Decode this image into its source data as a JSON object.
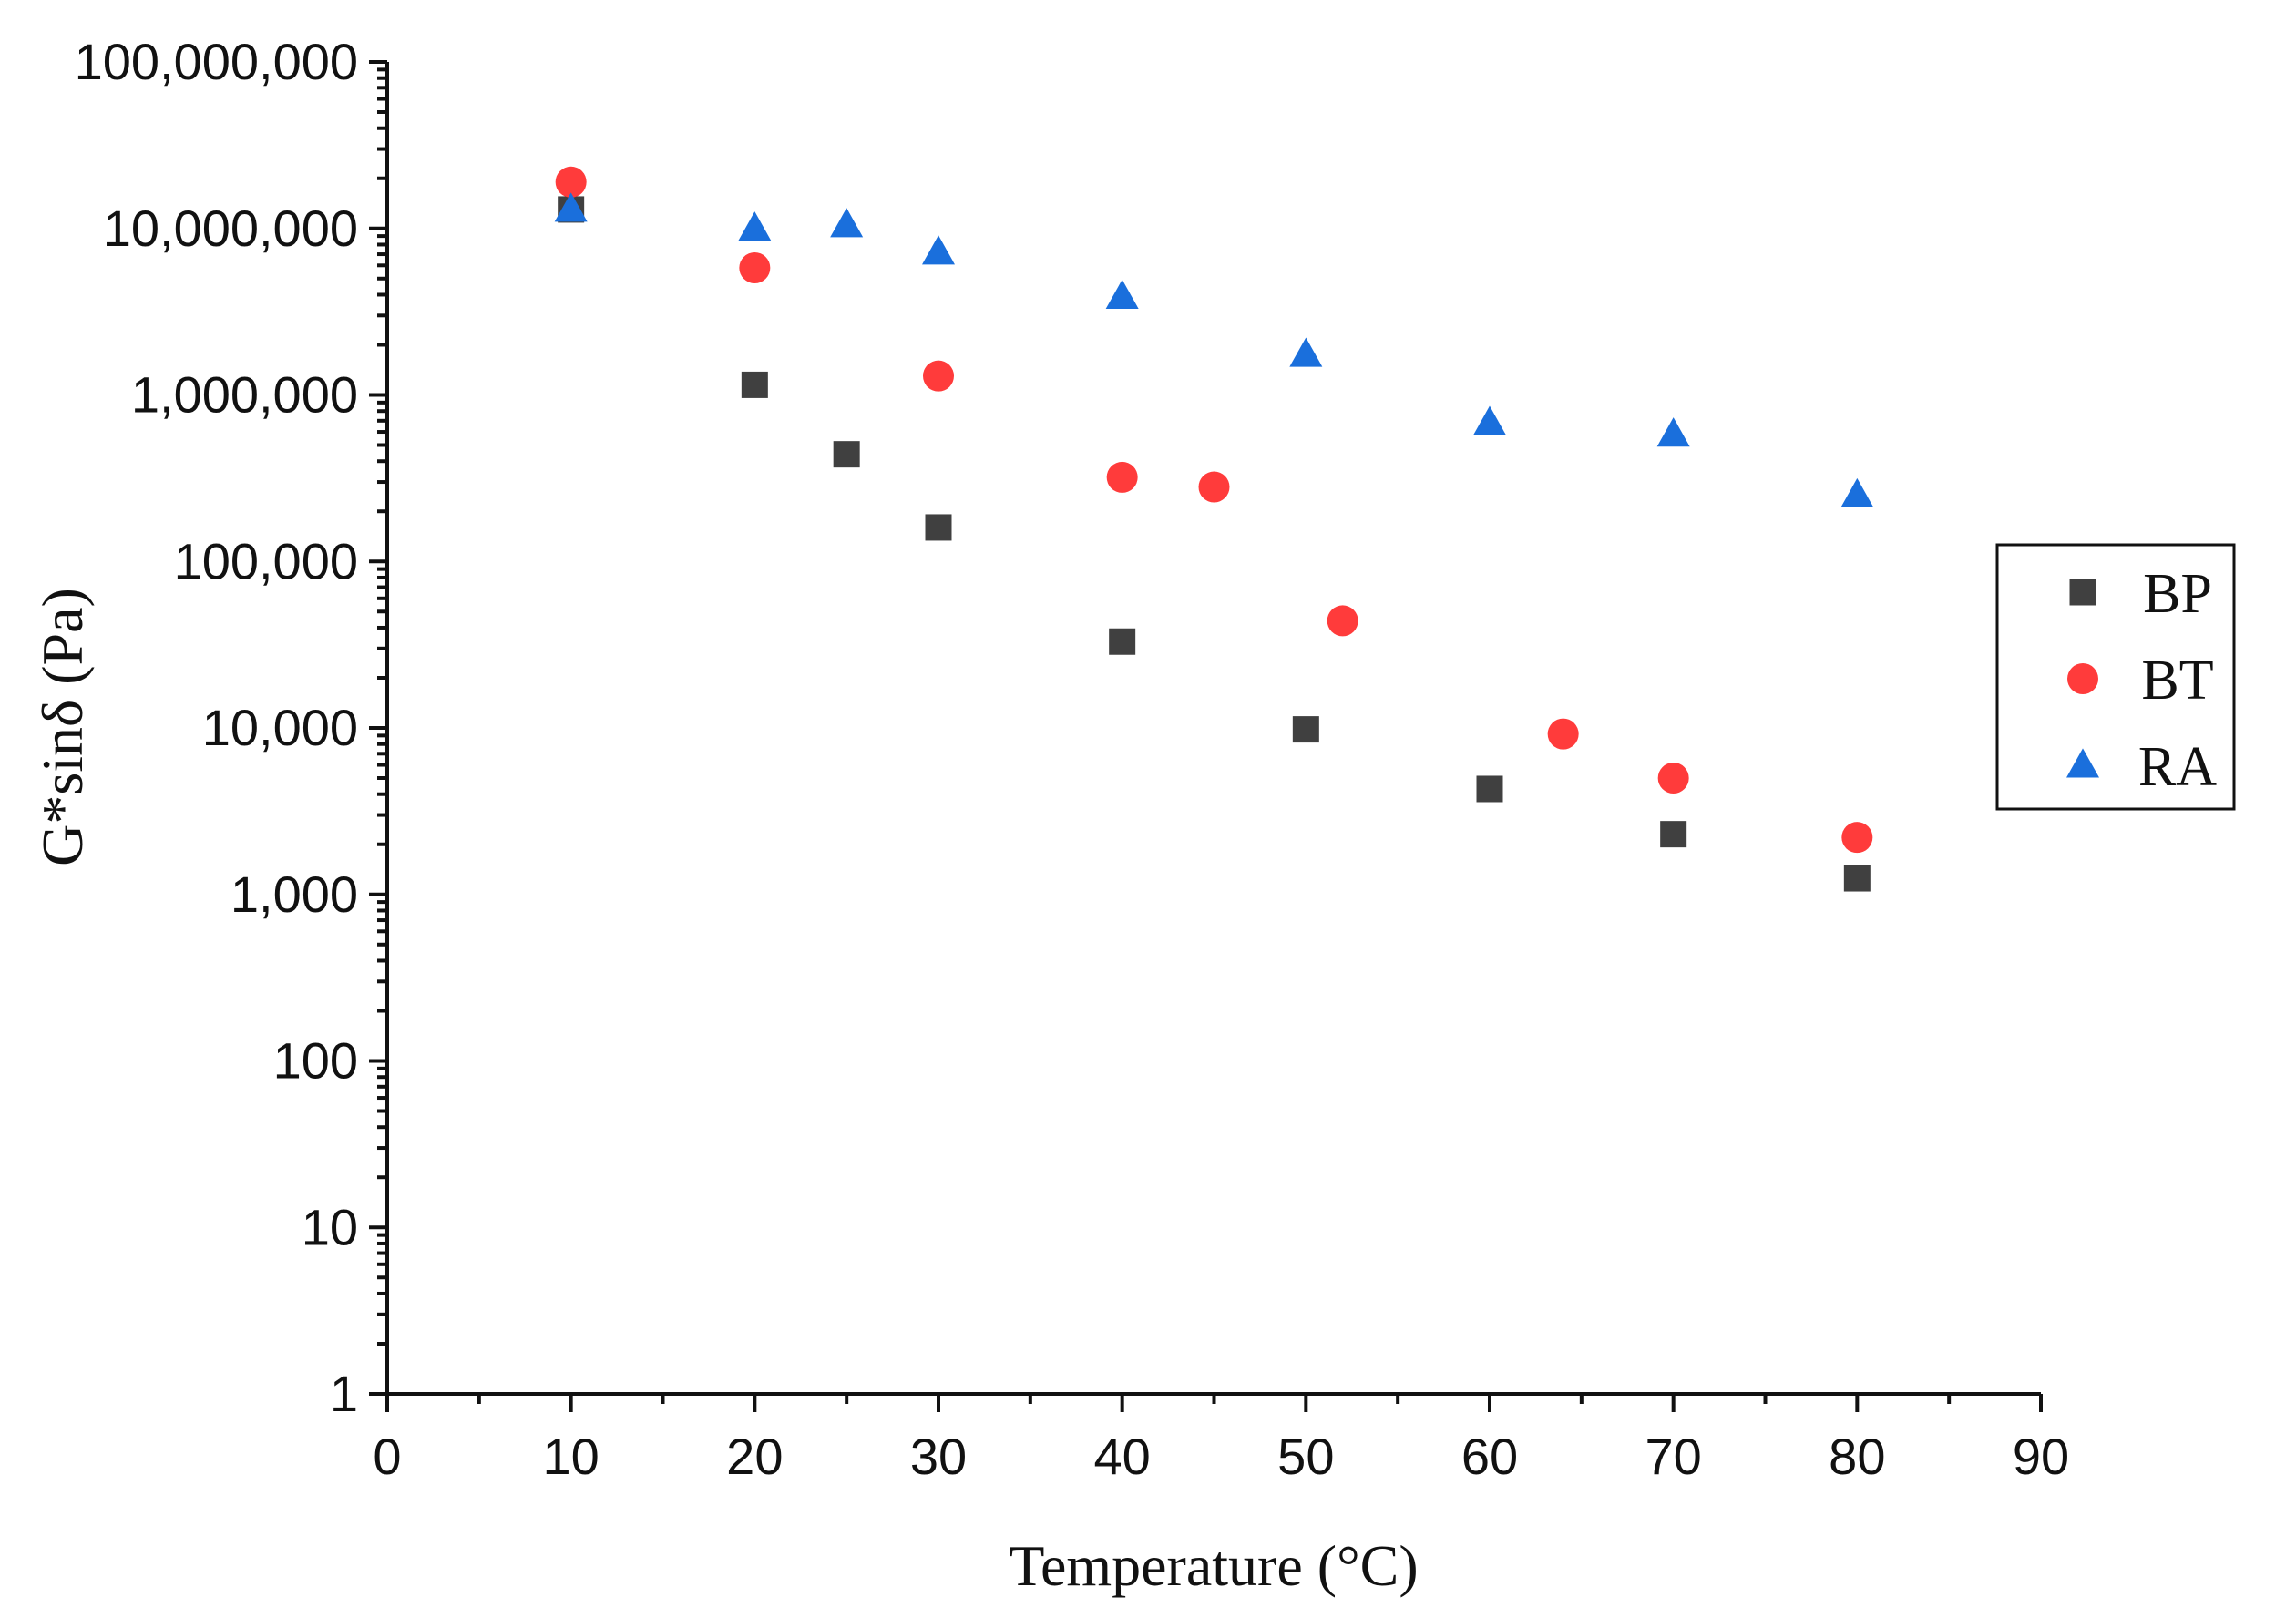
{
  "chart_data": {
    "type": "scatter",
    "title": "",
    "xlabel": "Temperature (°C)",
    "ylabel": "G*sinδ (Pa)",
    "xlim": [
      0,
      90
    ],
    "ylim": [
      1,
      100000000
    ],
    "yscale": "log",
    "grid": false,
    "legend_position": "right",
    "x_ticks": [
      0,
      10,
      20,
      30,
      40,
      50,
      60,
      70,
      80,
      90
    ],
    "x_tick_labels": [
      "0",
      "10",
      "20",
      "30",
      "40",
      "50",
      "60",
      "70",
      "80",
      "90"
    ],
    "y_ticks": [
      1,
      10,
      100,
      1000,
      10000,
      100000,
      1000000,
      10000000,
      100000000
    ],
    "y_tick_labels": [
      "1",
      "10",
      "100",
      "1,000",
      "10,000",
      "100,000",
      "1,000,000",
      "10,000,000",
      "100,000,000"
    ],
    "series": [
      {
        "name": "BP",
        "marker": "square",
        "color": "#404040",
        "x": [
          10,
          20,
          25,
          30,
          40,
          50,
          60,
          70,
          80
        ],
        "y": [
          13000000,
          1150000,
          440000,
          160000,
          33000,
          9800,
          4300,
          2300,
          1250
        ]
      },
      {
        "name": "BT",
        "marker": "circle",
        "color": "#ff3b3b",
        "x": [
          10,
          20,
          30,
          40,
          45,
          52,
          64,
          70,
          80
        ],
        "y": [
          19000000,
          5800000,
          1300000,
          320000,
          280000,
          44000,
          9200,
          5000,
          2200
        ]
      },
      {
        "name": "RA",
        "marker": "triangle",
        "color": "#1a6fdc",
        "x": [
          10,
          20,
          25,
          30,
          40,
          50,
          60,
          70,
          80
        ],
        "y": [
          13000000,
          10000000,
          10500000,
          7200000,
          3900000,
          1750000,
          680000,
          580000,
          250000
        ]
      }
    ]
  }
}
